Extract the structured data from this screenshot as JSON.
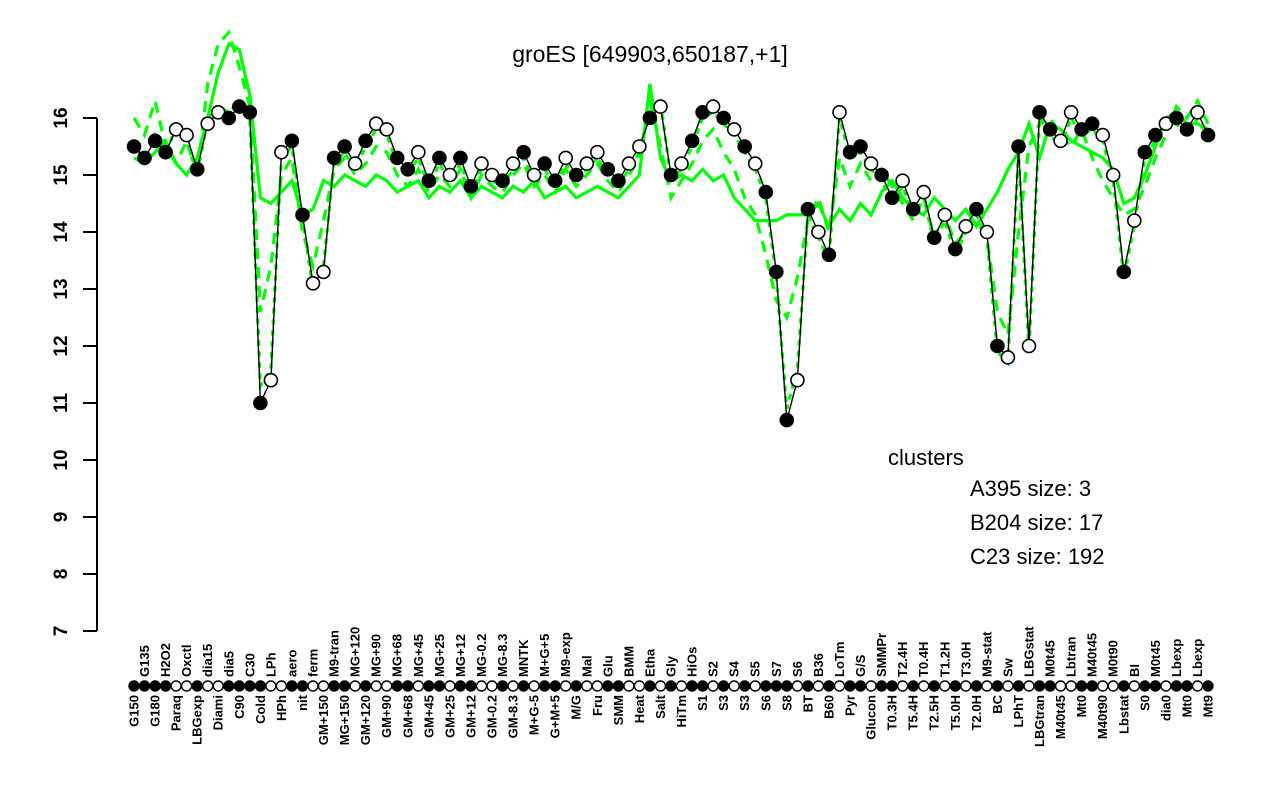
{
  "title": "groES [649903,650187,+1]",
  "colors": {
    "cluster_green": "#00ff00",
    "series_black": "#000000",
    "open_point_fill": "#ffffff"
  },
  "legend": {
    "header": "clusters",
    "items": [
      {
        "label": "A395 size: 3",
        "style": "dotted"
      },
      {
        "label": "B204 size: 17",
        "style": "dashed"
      },
      {
        "label": "C23 size: 192",
        "style": "solid"
      }
    ]
  },
  "chart_data": {
    "type": "line",
    "title": "groES [649903,650187,+1]",
    "ylim": [
      7,
      16
    ],
    "y_ticks": [
      7,
      8,
      9,
      10,
      11,
      12,
      13,
      14,
      15,
      16
    ],
    "grid": false,
    "legend_position": "right-middle",
    "x_categories": [
      "G150",
      "G135",
      "G180",
      "H2O2",
      "Paraq",
      "Oxctl",
      "LBGexp",
      "dia15",
      "Diami",
      "dia5",
      "C90",
      "C30",
      "Cold",
      "LPh",
      "HPh",
      "aero",
      "nit",
      "ferm",
      "GM+150",
      "M9-tran",
      "MG+150",
      "MG+120",
      "GM+120",
      "MG+90",
      "GM+90",
      "MG+68",
      "GM+68",
      "MG+45",
      "GM+45",
      "MG+25",
      "GM+25",
      "MG+12",
      "GM+12",
      "MG-0.2",
      "GM-0.2",
      "MG-8.3",
      "GM-8.3",
      "MNTK",
      "M+G-5",
      "M+G+5",
      "G+M+5",
      "M9-exp",
      "M/G",
      "Mal",
      "Fru",
      "Glu",
      "SMM",
      "BMM",
      "Heat",
      "Etha",
      "Salt",
      "Gly",
      "HiTm",
      "HiOs",
      "S1",
      "S2",
      "S3",
      "S4",
      "S3",
      "S5",
      "S6",
      "S7",
      "S8",
      "S6",
      "BT",
      "B36",
      "B60",
      "LoTm",
      "Pyr",
      "G/S",
      "Glucon",
      "SMMPr",
      "T0.3H",
      "T2.4H",
      "T5.4H",
      "T0.4H",
      "T2.5H",
      "T1.2H",
      "T5.0H",
      "T3.0H",
      "T2.0H",
      "M9-stat",
      "BC",
      "Sw",
      "LPhT",
      "LBGstat",
      "LBGtran",
      "M0t45",
      "M40t45",
      "Lbtran",
      "Mt0",
      "M40t45",
      "M40t90",
      "M0t90",
      "Lbstat",
      "BI",
      "S0",
      "M0t45",
      "dia0",
      "Lbexp",
      "Mt0",
      "Lbexp",
      "Mt9"
    ],
    "series": [
      {
        "name": "groES expression",
        "role": "gene",
        "color": "#000000",
        "marker": "circle",
        "values": [
          15.5,
          15.3,
          15.6,
          15.4,
          15.8,
          15.7,
          15.1,
          15.9,
          16.1,
          16.0,
          16.2,
          16.1,
          11.0,
          11.4,
          15.4,
          15.6,
          14.3,
          13.1,
          13.3,
          15.3,
          15.5,
          15.2,
          15.6,
          15.9,
          15.8,
          15.3,
          15.1,
          15.4,
          14.9,
          15.3,
          15.0,
          15.3,
          14.8,
          15.2,
          15.0,
          14.9,
          15.2,
          15.4,
          15.0,
          15.2,
          14.9,
          15.3,
          15.0,
          15.2,
          15.4,
          15.1,
          14.9,
          15.2,
          15.5,
          16.0,
          16.2,
          15.0,
          15.2,
          15.6,
          16.1,
          16.2,
          16.0,
          15.8,
          15.5,
          15.2,
          14.7,
          13.3,
          10.7,
          11.4,
          14.4,
          14.0,
          13.6,
          16.1,
          15.4,
          15.5,
          15.2,
          15.0,
          14.6,
          14.9,
          14.4,
          14.7,
          13.9,
          14.3,
          13.7,
          14.1,
          14.4,
          14.0,
          12.0,
          11.8,
          15.5,
          12.0,
          16.1,
          15.8,
          15.6,
          16.1,
          15.8,
          15.9,
          15.7,
          15.0,
          13.3,
          14.2,
          15.4,
          15.7,
          15.9,
          16.0,
          15.8,
          16.1,
          15.7
        ],
        "point_fill": [
          "F",
          "F",
          "F",
          "F",
          "O",
          "O",
          "F",
          "O",
          "O",
          "F",
          "F",
          "F",
          "F",
          "O",
          "O",
          "F",
          "F",
          "O",
          "O",
          "F",
          "F",
          "O",
          "F",
          "O",
          "O",
          "F",
          "F",
          "O",
          "F",
          "F",
          "O",
          "F",
          "F",
          "O",
          "O",
          "F",
          "O",
          "F",
          "O",
          "F",
          "F",
          "O",
          "F",
          "O",
          "O",
          "F",
          "F",
          "O",
          "O",
          "F",
          "O",
          "F",
          "O",
          "F",
          "F",
          "O",
          "F",
          "O",
          "F",
          "O",
          "F",
          "F",
          "F",
          "O",
          "F",
          "O",
          "F",
          "O",
          "F",
          "F",
          "O",
          "F",
          "F",
          "O",
          "F",
          "O",
          "F",
          "O",
          "F",
          "O",
          "F",
          "O",
          "F",
          "O",
          "F",
          "O",
          "F",
          "F",
          "O",
          "O",
          "F",
          "F",
          "O",
          "O",
          "F",
          "O",
          "F",
          "F",
          "O",
          "F",
          "F",
          "O",
          "F"
        ]
      },
      {
        "name": "A395 size: 3",
        "role": "cluster",
        "style": "dotted",
        "color": "#00ff00",
        "values": [
          15.6,
          15.2,
          15.7,
          15.3,
          15.9,
          15.6,
          15.0,
          16.0,
          16.2,
          16.1,
          16.3,
          16.0,
          11.3,
          11.6,
          15.3,
          15.5,
          14.2,
          13.0,
          13.4,
          15.2,
          15.4,
          15.1,
          15.5,
          15.8,
          15.7,
          15.2,
          15.0,
          15.3,
          14.8,
          15.2,
          14.9,
          15.2,
          14.7,
          15.1,
          14.9,
          14.8,
          15.1,
          15.3,
          14.9,
          15.1,
          14.8,
          15.2,
          14.9,
          15.1,
          15.3,
          15.0,
          14.8,
          15.1,
          15.4,
          16.1,
          16.3,
          14.9,
          15.1,
          15.5,
          16.0,
          16.1,
          15.9,
          15.7,
          15.4,
          15.1,
          14.6,
          13.2,
          10.9,
          11.6,
          14.3,
          13.9,
          13.5,
          16.0,
          15.3,
          15.4,
          15.1,
          14.9,
          14.5,
          14.8,
          14.3,
          14.6,
          13.8,
          14.2,
          13.6,
          14.0,
          14.3,
          13.9,
          11.9,
          11.7,
          15.4,
          11.9,
          16.0,
          15.7,
          15.5,
          16.0,
          15.7,
          15.8,
          15.6,
          14.9,
          13.2,
          14.1,
          15.3,
          15.6,
          15.8,
          15.9,
          15.7,
          16.0,
          15.6
        ]
      },
      {
        "name": "B204 size: 17",
        "role": "cluster",
        "style": "dashed",
        "color": "#00ff00",
        "values": [
          16.0,
          15.7,
          16.3,
          15.5,
          15.2,
          15.6,
          15.0,
          16.6,
          17.3,
          17.5,
          16.9,
          16.2,
          12.6,
          13.4,
          15.0,
          15.3,
          14.0,
          13.4,
          14.2,
          15.1,
          15.3,
          15.0,
          15.2,
          15.5,
          15.4,
          15.0,
          14.8,
          15.1,
          14.7,
          15.0,
          14.8,
          15.1,
          14.6,
          15.0,
          14.8,
          14.7,
          15.0,
          15.2,
          14.8,
          15.0,
          14.7,
          15.1,
          14.8,
          15.0,
          15.2,
          14.9,
          14.7,
          15.0,
          15.3,
          16.3,
          15.5,
          14.6,
          14.9,
          15.2,
          15.6,
          15.8,
          15.4,
          15.1,
          14.6,
          14.3,
          13.6,
          12.8,
          12.5,
          13.2,
          14.2,
          14.6,
          14.0,
          15.3,
          14.8,
          15.2,
          14.9,
          15.1,
          14.8,
          14.5,
          14.2,
          14.6,
          13.9,
          14.3,
          13.8,
          14.0,
          14.2,
          13.9,
          12.6,
          12.2,
          14.0,
          15.5,
          15.9,
          16.0,
          15.7,
          15.5,
          15.8,
          15.3,
          14.9,
          14.6,
          14.3,
          14.4,
          14.8,
          15.3,
          15.7,
          16.2,
          16.0,
          16.3,
          15.9
        ]
      },
      {
        "name": "C23 size: 192",
        "role": "cluster",
        "style": "solid",
        "color": "#00ff00",
        "values": [
          15.3,
          15.2,
          15.4,
          15.6,
          15.2,
          15.0,
          15.3,
          16.0,
          16.8,
          17.3,
          17.2,
          16.4,
          14.6,
          14.5,
          14.7,
          14.9,
          14.3,
          14.4,
          14.9,
          14.8,
          15.0,
          14.9,
          14.8,
          15.0,
          14.9,
          14.7,
          14.8,
          14.9,
          14.6,
          14.8,
          14.7,
          14.9,
          14.6,
          14.8,
          14.7,
          14.6,
          14.8,
          14.7,
          14.9,
          14.6,
          14.7,
          14.8,
          14.6,
          14.7,
          14.8,
          14.7,
          14.6,
          14.8,
          15.0,
          16.6,
          15.3,
          14.9,
          15.0,
          14.9,
          15.1,
          14.9,
          15.0,
          14.6,
          14.4,
          14.2,
          14.2,
          14.2,
          14.3,
          14.3,
          14.3,
          14.5,
          14.1,
          14.4,
          14.2,
          14.5,
          14.3,
          14.7,
          14.9,
          14.6,
          14.4,
          14.3,
          14.6,
          14.4,
          14.2,
          14.4,
          14.1,
          14.4,
          14.7,
          15.1,
          15.4,
          15.9,
          15.3,
          15.9,
          15.8,
          15.6,
          15.5,
          15.4,
          15.3,
          15.1,
          14.5,
          14.6,
          15.0,
          15.5,
          16.0,
          16.1,
          15.9,
          15.9,
          15.8
        ]
      }
    ]
  }
}
